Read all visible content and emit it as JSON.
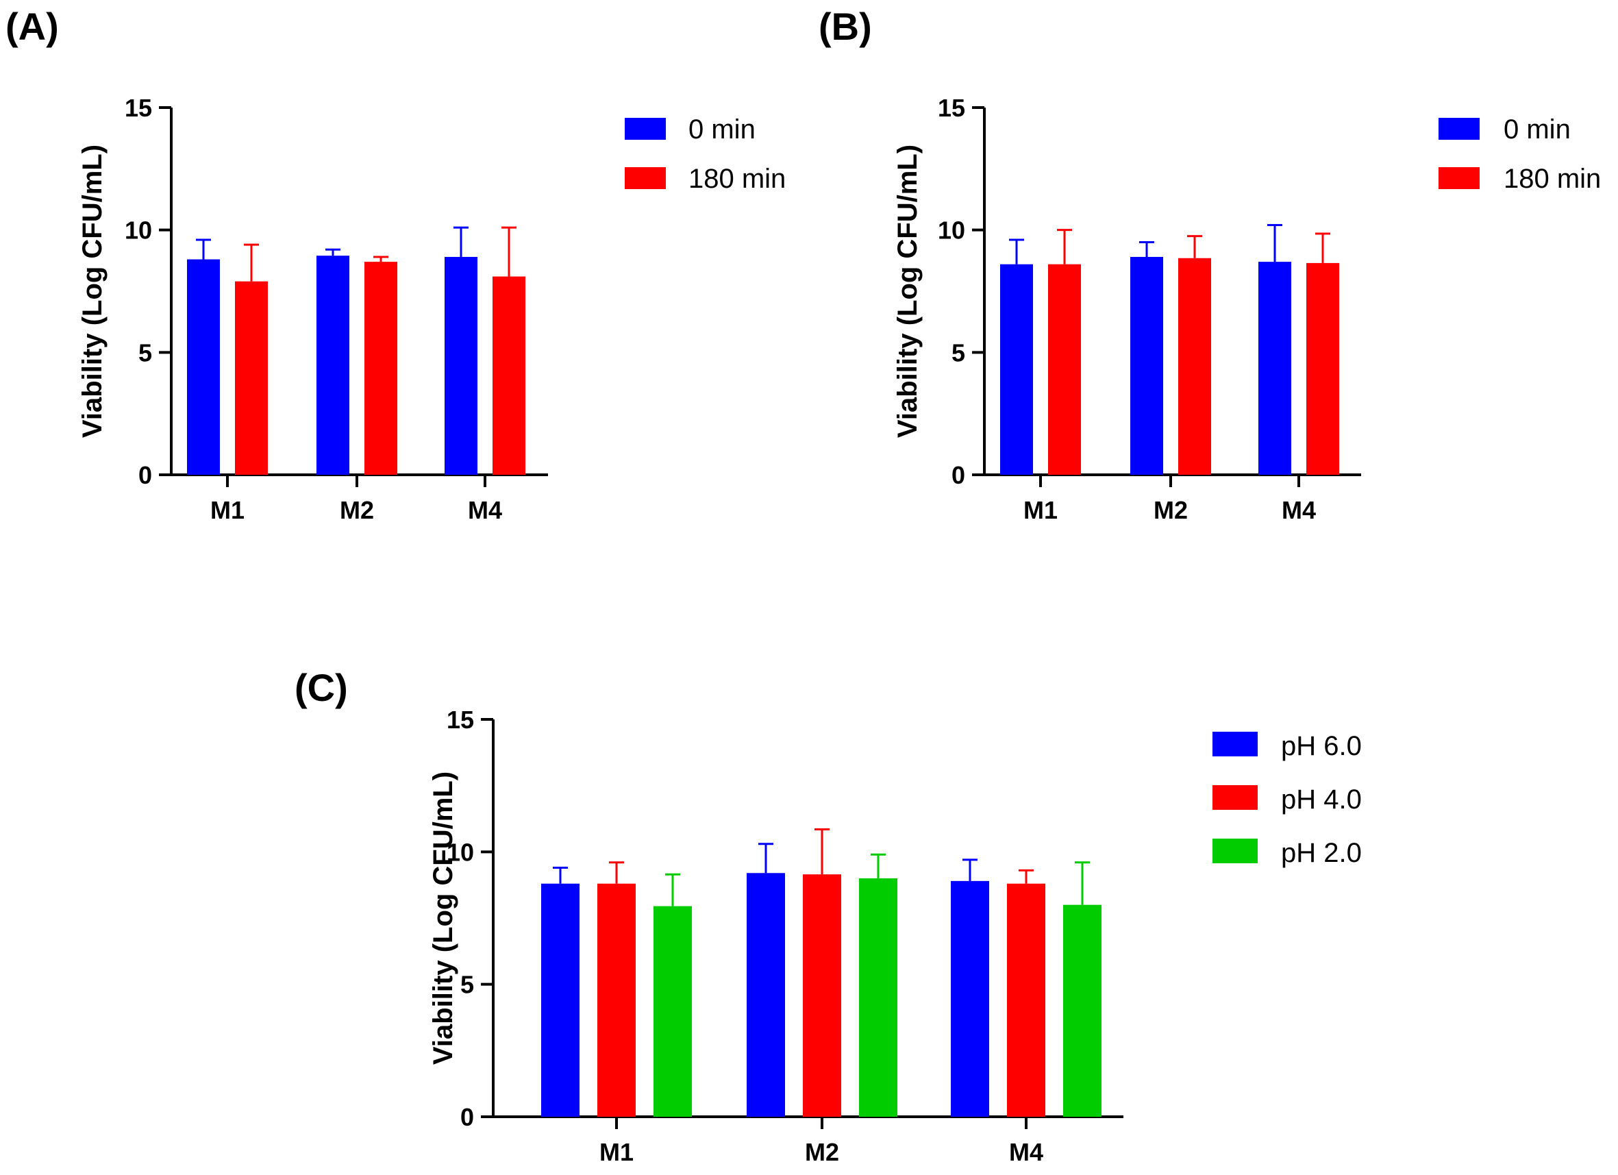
{
  "chart_data": [
    {
      "panel": "(A)",
      "type": "bar",
      "ylabel": "Viability (Log CFU/mL)",
      "xlabel": "",
      "ylim": [
        0,
        15
      ],
      "yticks": [
        "0",
        "5",
        "10",
        "15"
      ],
      "grid": false,
      "legend_position": "top-right",
      "categories": [
        "M1",
        "M2",
        "M4"
      ],
      "series": [
        {
          "name": "0 min",
          "color": "#0000ff",
          "values": [
            8.8,
            8.95,
            8.9
          ],
          "errors": [
            0.8,
            0.25,
            1.2
          ]
        },
        {
          "name": "180 min",
          "color": "#ff0000",
          "values": [
            7.9,
            8.7,
            8.1
          ],
          "errors": [
            1.5,
            0.2,
            2.0
          ]
        }
      ]
    },
    {
      "panel": "(B)",
      "type": "bar",
      "ylabel": "Viability (Log CFU/mL)",
      "xlabel": "",
      "ylim": [
        0,
        15
      ],
      "yticks": [
        "0",
        "5",
        "10",
        "15"
      ],
      "grid": false,
      "legend_position": "top-right",
      "categories": [
        "M1",
        "M2",
        "M4"
      ],
      "series": [
        {
          "name": "0 min",
          "color": "#0000ff",
          "values": [
            8.6,
            8.9,
            8.7
          ],
          "errors": [
            1.0,
            0.6,
            1.5
          ]
        },
        {
          "name": "180 min",
          "color": "#ff0000",
          "values": [
            8.6,
            8.85,
            8.65
          ],
          "errors": [
            1.4,
            0.9,
            1.2
          ]
        }
      ]
    },
    {
      "panel": "(C)",
      "type": "bar",
      "ylabel": "Viability (Log CFU/mL)",
      "xlabel": "",
      "ylim": [
        0,
        15
      ],
      "yticks": [
        "0",
        "5",
        "10",
        "15"
      ],
      "grid": false,
      "legend_position": "top-right",
      "categories": [
        "M1",
        "M2",
        "M4"
      ],
      "series": [
        {
          "name": "pH 6.0",
          "color": "#0000ff",
          "values": [
            8.8,
            9.2,
            8.9
          ],
          "errors": [
            0.6,
            1.1,
            0.8
          ]
        },
        {
          "name": "pH 4.0",
          "color": "#ff0000",
          "values": [
            8.8,
            9.15,
            8.8
          ],
          "errors": [
            0.8,
            1.7,
            0.5
          ]
        },
        {
          "name": "pH 2.0",
          "color": "#00cc00",
          "values": [
            7.95,
            9.0,
            8.0
          ],
          "errors": [
            1.2,
            0.9,
            1.6
          ]
        }
      ]
    }
  ]
}
